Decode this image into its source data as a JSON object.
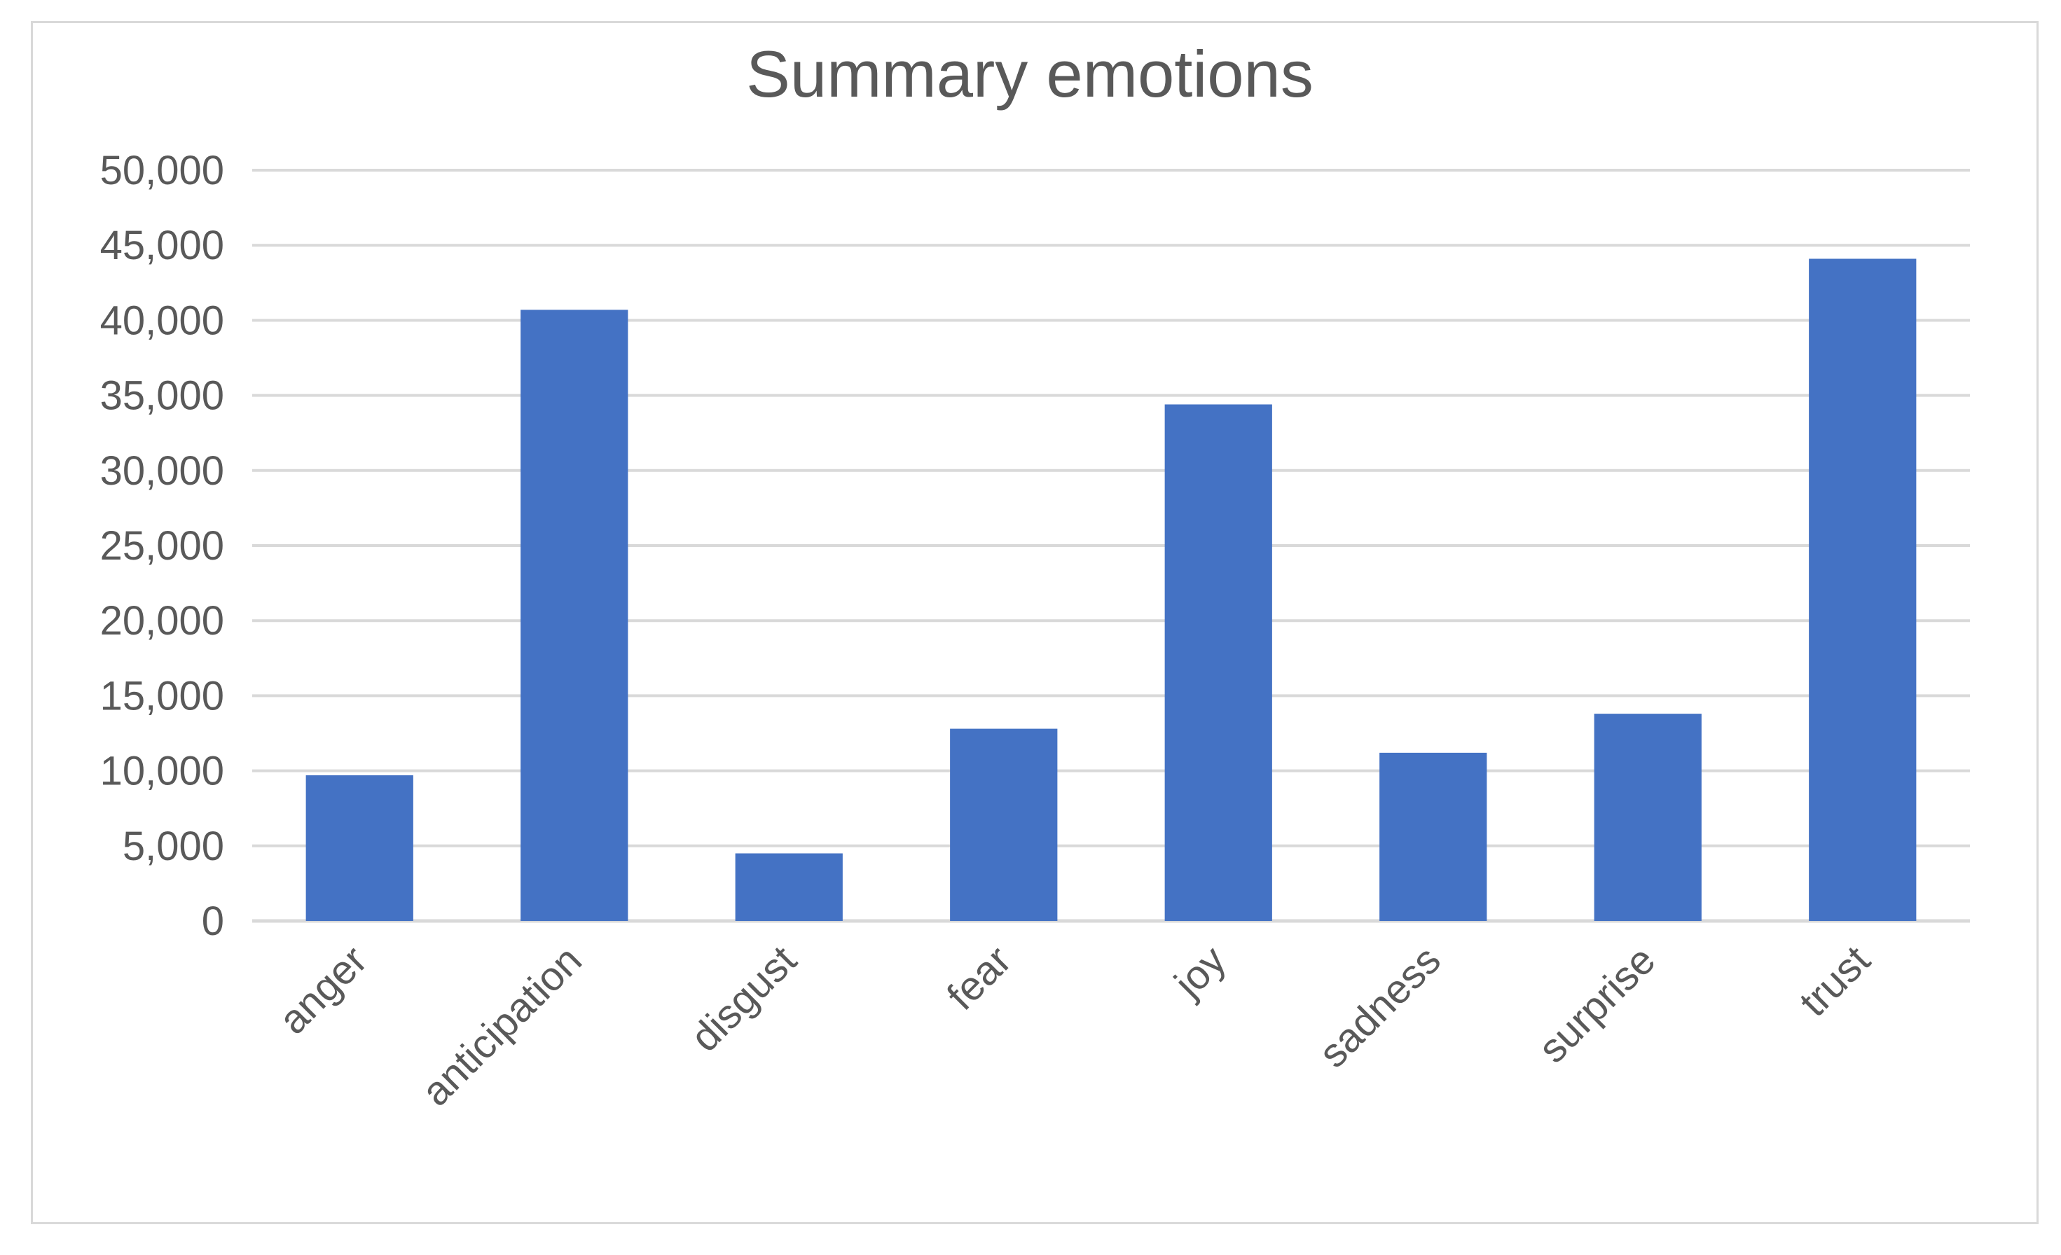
{
  "chart_data": {
    "type": "bar",
    "title": "Summary emotions",
    "xlabel": "",
    "ylabel": "",
    "categories": [
      "anger",
      "anticipation",
      "disgust",
      "fear",
      "joy",
      "sadness",
      "surprise",
      "trust"
    ],
    "values": [
      9700,
      40700,
      4500,
      12800,
      34400,
      11200,
      13800,
      44100
    ],
    "ylim": [
      0,
      50000
    ],
    "y_ticks": [
      0,
      5000,
      10000,
      15000,
      20000,
      25000,
      30000,
      35000,
      40000,
      45000,
      50000
    ],
    "y_tick_labels": [
      "0",
      "5,000",
      "10,000",
      "15,000",
      "20,000",
      "25,000",
      "30,000",
      "35,000",
      "40,000",
      "45,000",
      "50,000"
    ],
    "grid": true,
    "legend": "none",
    "bar_color": "#4472C4"
  }
}
